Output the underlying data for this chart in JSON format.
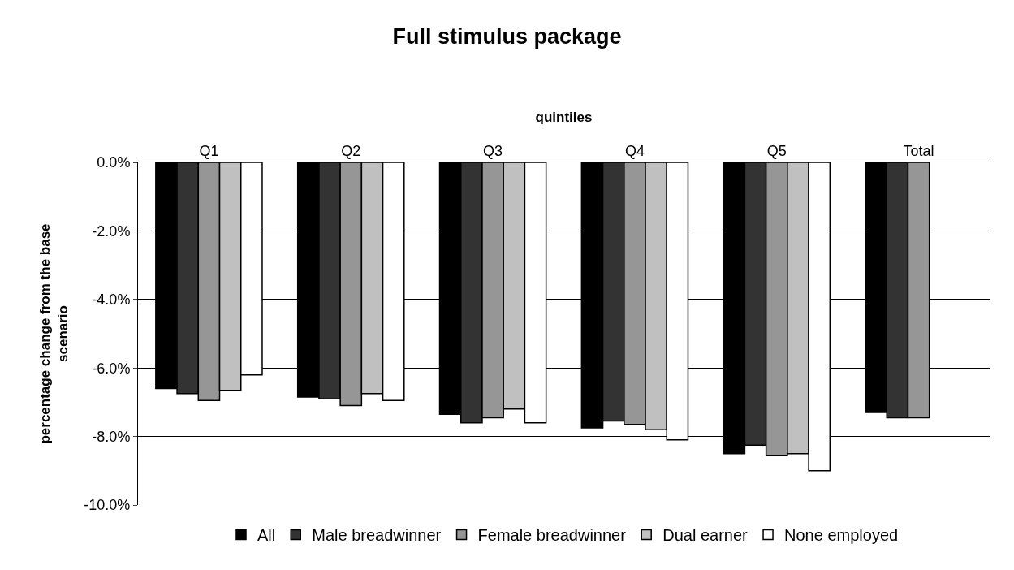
{
  "chart_data": {
    "type": "bar",
    "title": "Full stimulus package",
    "xlabel": "quintiles",
    "ylabel": "percentage change from the base scenario",
    "categories": [
      "Q1",
      "Q2",
      "Q3",
      "Q4",
      "Q5",
      "Total"
    ],
    "series": [
      {
        "name": "All",
        "color": "#000000",
        "values": [
          -6.6,
          -6.85,
          -7.35,
          -7.75,
          -8.5,
          -7.3
        ]
      },
      {
        "name": "Male breadwinner",
        "color": "#333333",
        "values": [
          -6.75,
          -6.9,
          -7.6,
          -7.55,
          -8.25,
          -7.45
        ]
      },
      {
        "name": "Female breadwinner",
        "color": "#969696",
        "values": [
          -6.95,
          -7.1,
          -7.45,
          -7.65,
          -8.55,
          -7.45
        ]
      },
      {
        "name": "Dual earner",
        "color": "#c0c0c0",
        "values": [
          -6.65,
          -6.75,
          -7.2,
          -7.8,
          -8.5,
          null
        ]
      },
      {
        "name": "None employed",
        "color": "#ffffff",
        "values": [
          -6.2,
          -6.95,
          -7.6,
          -8.1,
          -9.0,
          null
        ]
      }
    ],
    "ylim": [
      -10,
      0
    ],
    "yticks": [
      {
        "value": 0,
        "label": "0.0%"
      },
      {
        "value": -2,
        "label": "-2.0%"
      },
      {
        "value": -4,
        "label": "-4.0%"
      },
      {
        "value": -6,
        "label": "-6.0%"
      },
      {
        "value": -8,
        "label": "-8.0%"
      },
      {
        "value": -10,
        "label": "-10.0%"
      }
    ],
    "grid": "y",
    "legend": "bottom"
  }
}
